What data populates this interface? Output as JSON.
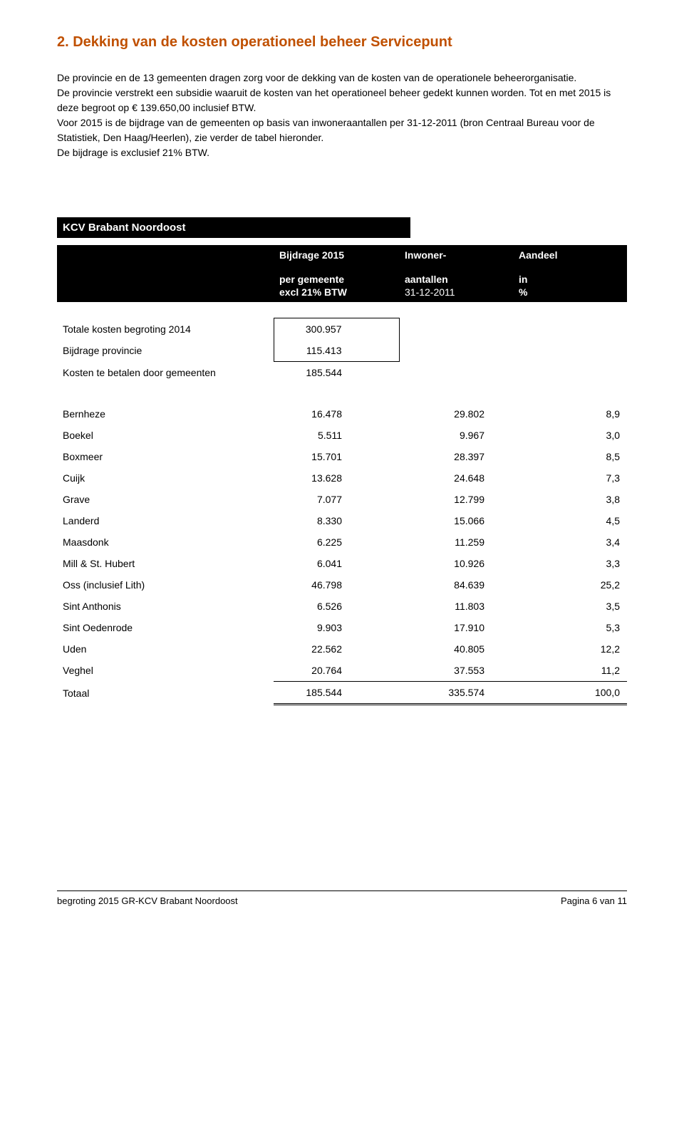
{
  "section_title": "2. Dekking van de kosten operationeel beheer Servicepunt",
  "paragraphs": {
    "p1": "De provincie en de 13 gemeenten dragen zorg voor de dekking van de kosten van de operationele beheerorganisatie.",
    "p2": "De provincie verstrekt een subsidie waaruit de kosten van het operationeel beheer gedekt kunnen worden. Tot en met 2015 is deze begroot op € 139.650,00 inclusief BTW.",
    "p3": "Voor 2015 is de bijdrage van de gemeenten op basis van inwoneraantallen per 31-12-2011 (bron Centraal Bureau voor de Statistiek, Den Haag/Heerlen), zie verder de tabel hieronder.",
    "p4": "De bijdrage is exclusief 21% BTW."
  },
  "table_title": "KCV Brabant Noordoost",
  "header": {
    "bijdrage": "Bijdrage 2015",
    "inwoner": "Inwoner-",
    "aandeel": "Aandeel",
    "per_gemeente": "per gemeente",
    "aantallen": "aantallen",
    "in": "in",
    "excl_btw": "excl 21% BTW",
    "datum": "31-12-2011",
    "pct": "%"
  },
  "summary": [
    {
      "label": "Totale kosten begroting 2014",
      "value": "300.957"
    },
    {
      "label": "Bijdrage provincie",
      "value": "115.413"
    },
    {
      "label": "Kosten te betalen door gemeenten",
      "value": "185.544"
    }
  ],
  "rows": [
    {
      "gemeente": "Bernheze",
      "bijdrage": "16.478",
      "inwoners": "29.802",
      "aandeel": "8,9"
    },
    {
      "gemeente": "Boekel",
      "bijdrage": "5.511",
      "inwoners": "9.967",
      "aandeel": "3,0"
    },
    {
      "gemeente": "Boxmeer",
      "bijdrage": "15.701",
      "inwoners": "28.397",
      "aandeel": "8,5"
    },
    {
      "gemeente": "Cuijk",
      "bijdrage": "13.628",
      "inwoners": "24.648",
      "aandeel": "7,3"
    },
    {
      "gemeente": "Grave",
      "bijdrage": "7.077",
      "inwoners": "12.799",
      "aandeel": "3,8"
    },
    {
      "gemeente": "Landerd",
      "bijdrage": "8.330",
      "inwoners": "15.066",
      "aandeel": "4,5"
    },
    {
      "gemeente": "Maasdonk",
      "bijdrage": "6.225",
      "inwoners": "11.259",
      "aandeel": "3,4"
    },
    {
      "gemeente": "Mill & St. Hubert",
      "bijdrage": "6.041",
      "inwoners": "10.926",
      "aandeel": "3,3"
    },
    {
      "gemeente": "Oss (inclusief Lith)",
      "bijdrage": "46.798",
      "inwoners": "84.639",
      "aandeel": "25,2"
    },
    {
      "gemeente": "Sint Anthonis",
      "bijdrage": "6.526",
      "inwoners": "11.803",
      "aandeel": "3,5"
    },
    {
      "gemeente": "Sint Oedenrode",
      "bijdrage": "9.903",
      "inwoners": "17.910",
      "aandeel": "5,3"
    },
    {
      "gemeente": "Uden",
      "bijdrage": "22.562",
      "inwoners": "40.805",
      "aandeel": "12,2"
    },
    {
      "gemeente": "Veghel",
      "bijdrage": "20.764",
      "inwoners": "37.553",
      "aandeel": "11,2"
    }
  ],
  "total_row": {
    "gemeente": "Totaal",
    "bijdrage": "185.544",
    "inwoners": "335.574",
    "aandeel": "100,0"
  },
  "footer": {
    "left": "begroting 2015 GR-KCV Brabant Noordoost",
    "right": "Pagina 6 van 11"
  },
  "colors": {
    "accent": "#c05000",
    "black": "#000000",
    "white": "#ffffff"
  }
}
